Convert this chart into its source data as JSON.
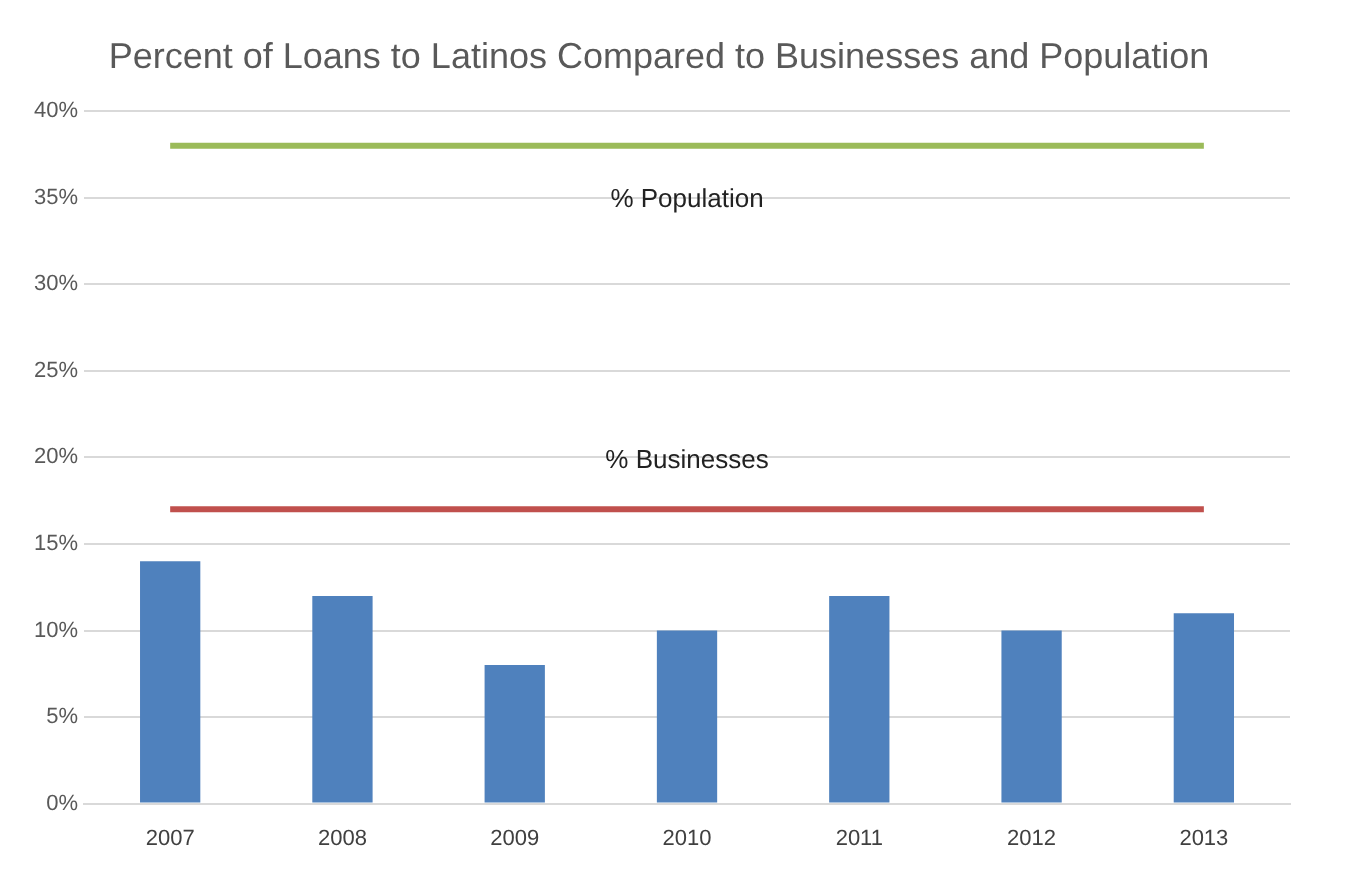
{
  "chart_data": {
    "type": "bar",
    "title": "Percent of Loans to Latinos Compared to Businesses and Population",
    "categories": [
      "2007",
      "2008",
      "2009",
      "2010",
      "2011",
      "2012",
      "2013"
    ],
    "series": [
      {
        "color": "#4f81bd",
        "values": [
          14,
          12,
          8,
          10,
          12,
          10,
          11
        ]
      },
      {
        "name": "% Population",
        "type": "line",
        "color": "#9bbb59",
        "values": [
          38,
          38,
          38,
          38,
          38,
          38,
          38
        ]
      },
      {
        "name": "% Businesses",
        "type": "line",
        "color": "#c0504d",
        "values": [
          17,
          17,
          17,
          17,
          17,
          17,
          17
        ]
      }
    ],
    "ylim": [
      0,
      40
    ],
    "yticks": [
      {
        "value": 0,
        "label": "0%"
      },
      {
        "value": 5,
        "label": "5%"
      },
      {
        "value": 10,
        "label": "10%"
      },
      {
        "value": 15,
        "label": "15%"
      },
      {
        "value": 20,
        "label": "20%"
      },
      {
        "value": 25,
        "label": "25%"
      },
      {
        "value": 30,
        "label": "30%"
      },
      {
        "value": 35,
        "label": "35%"
      },
      {
        "value": 40,
        "label": "40%"
      }
    ],
    "grid": "y",
    "legend": false,
    "marker": "none"
  }
}
